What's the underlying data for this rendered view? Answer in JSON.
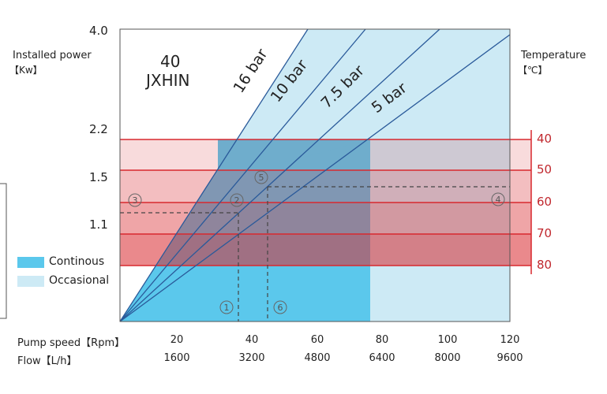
{
  "chart_data": {
    "type": "line",
    "title": "40\nJXHIN",
    "title_line1": "40",
    "title_line2": "JXHIN",
    "ylabel": "Installed power",
    "ylabel_unit": "【Kw】",
    "y_ticks": [
      "4.0",
      "2.2",
      "1.5",
      "1.1"
    ],
    "right_label": "Temperature",
    "right_unit": "【℃】",
    "temperature_ticks": [
      "40",
      "50",
      "60",
      "70",
      "80"
    ],
    "x_label_speed": "Pump speed【Rpm】",
    "x_ticks_speed": [
      "20",
      "40",
      "60",
      "80",
      "100",
      "120"
    ],
    "x_label_flow": "Flow【L/h】",
    "x_ticks_flow": [
      "1600",
      "3200",
      "4800",
      "6400",
      "8000",
      "9600"
    ],
    "series": [
      {
        "name": "16 bar"
      },
      {
        "name": "10 bar"
      },
      {
        "name": "7.5 bar"
      },
      {
        "name": "5 bar"
      }
    ],
    "markers": [
      "①",
      "②",
      "③",
      "④",
      "⑤",
      "⑥"
    ],
    "legend": [
      {
        "label": "Continous",
        "color": "#5bc8ec"
      },
      {
        "label": "Occasional",
        "color": "#cdeaf5"
      }
    ],
    "colors": {
      "line": "#2a5a9a",
      "temperature": "#d8282e",
      "continuous": "#5bc8ec",
      "occasional": "#cdeaf5"
    }
  }
}
